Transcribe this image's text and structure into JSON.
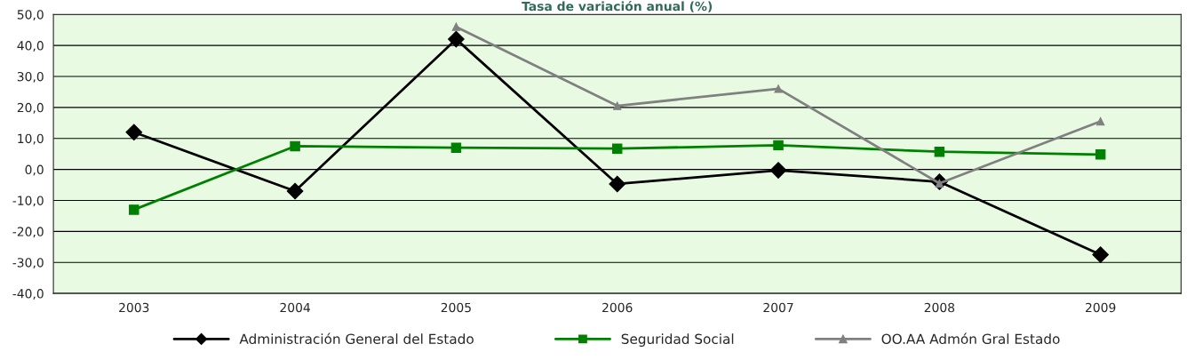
{
  "chart_data": {
    "type": "line",
    "title": "Tasa de variación anual (%)",
    "categories": [
      "2003",
      "2004",
      "2005",
      "2006",
      "2007",
      "2008",
      "2009"
    ],
    "series": [
      {
        "name": "Administración General del Estado",
        "color": "#000000",
        "marker": "diamond",
        "values": [
          12,
          -7,
          42,
          -4.7,
          -0.3,
          -4,
          -27.5
        ]
      },
      {
        "name": "Seguridad Social",
        "color": "#008000",
        "marker": "square",
        "values": [
          -13,
          7.5,
          7,
          6.7,
          7.8,
          5.7,
          4.8
        ]
      },
      {
        "name": "OO.AA Admón Gral Estado",
        "color": "#808080",
        "marker": "triangle",
        "values": [
          null,
          null,
          46,
          20.5,
          26,
          -4.5,
          15.5
        ]
      }
    ],
    "ylim": [
      -40,
      50
    ],
    "yticks": [
      {
        "value": -40,
        "label": "-40,0"
      },
      {
        "value": -30,
        "label": "-30,0"
      },
      {
        "value": -20,
        "label": "-20,0"
      },
      {
        "value": -10,
        "label": "-10,0"
      },
      {
        "value": 0,
        "label": "0,0"
      },
      {
        "value": 10,
        "label": "10,0"
      },
      {
        "value": 20,
        "label": "20,0"
      },
      {
        "value": 30,
        "label": "30,0"
      },
      {
        "value": 40,
        "label": "40,0"
      },
      {
        "value": 50,
        "label": "50,0"
      }
    ],
    "grid": "y",
    "legend": "bottom",
    "line_style": "solid"
  }
}
